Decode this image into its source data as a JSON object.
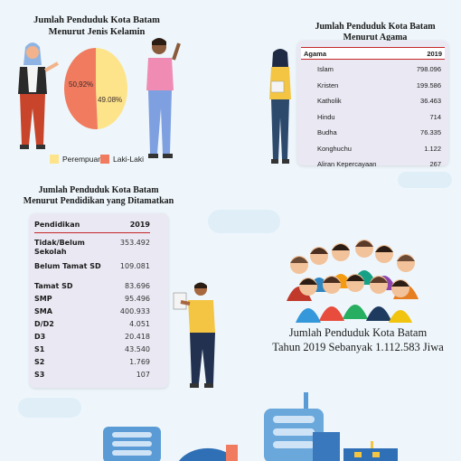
{
  "gender": {
    "title_line1": "Jumlah Penduduk Kota Batam",
    "title_line2": "Menurut Jenis Kelamin",
    "male_pct_label": "50,92%",
    "female_pct_label": "49.08%",
    "female_fraction": 0.4908,
    "legend_female": "Perempuan",
    "legend_male": "Laki-Laki",
    "colors": {
      "female": "#fde48a",
      "male": "#f07b5e"
    }
  },
  "religion": {
    "title_line1": "Jumlah Penduduk Kota Batam",
    "title_line2": "Menurut Agama",
    "header": {
      "label": "Agama",
      "year": "2019"
    },
    "rows": [
      {
        "label": "Islam",
        "value": "798.096"
      },
      {
        "label": "Kristen",
        "value": "199.586"
      },
      {
        "label": "Katholik",
        "value": "36.463"
      },
      {
        "label": "Hindu",
        "value": "714"
      },
      {
        "label": "Budha",
        "value": "76.335"
      },
      {
        "label": "Konghuchu",
        "value": "1.122"
      },
      {
        "label": "Aliran Kepercayaan",
        "value": "267"
      }
    ]
  },
  "education": {
    "title_line1": "Jumlah Penduduk Kota Batam",
    "title_line2": "Menurut Pendidikan yang Ditamatkan",
    "header": {
      "label": "Pendidikan",
      "year": "2019"
    },
    "rows": [
      {
        "label": "Tidak/Belum Sekolah",
        "value": "353.492"
      },
      {
        "label": "Belum Tamat SD",
        "value": "109.081"
      },
      {
        "label": "Tamat SD",
        "value": "83.696"
      },
      {
        "label": "SMP",
        "value": "95.496"
      },
      {
        "label": "SMA",
        "value": "400.933"
      },
      {
        "label": "D/D2",
        "value": "4.051"
      },
      {
        "label": "D3",
        "value": "20.418"
      },
      {
        "label": "S1",
        "value": "43.540"
      },
      {
        "label": "S2",
        "value": "1.769"
      },
      {
        "label": "S3",
        "value": "107"
      }
    ]
  },
  "total": {
    "line1": "Jumlah Penduduk Kota Batam",
    "line2": "Tahun 2019 Sebanyak 1.112.583 Jiwa"
  },
  "accent_color": "#c62828"
}
